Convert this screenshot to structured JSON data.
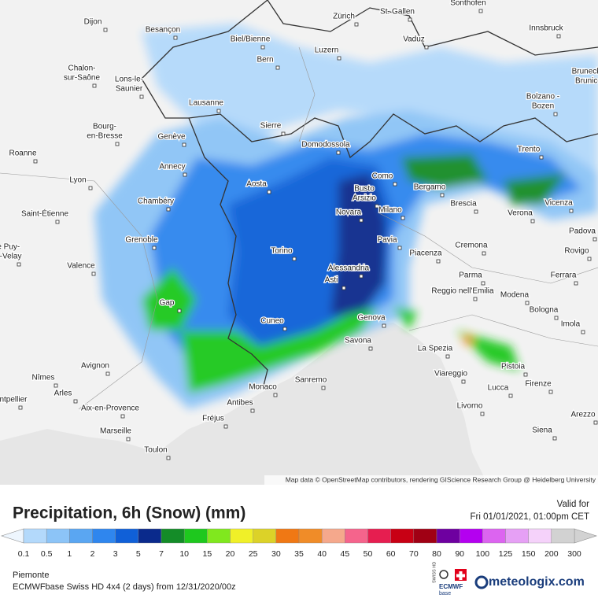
{
  "map": {
    "cities": [
      [
        "Dijon"
      ],
      [
        "Besançon"
      ],
      [
        "Biel/Bienne"
      ],
      [
        "Zürich"
      ],
      [
        "St. Gallen"
      ],
      [
        "Sonthofen"
      ],
      [
        "Innsbruck"
      ],
      [
        "Vaduz"
      ],
      [
        "Bern"
      ],
      [
        "Luzern"
      ],
      [
        "Chalon-",
        "sur-Saône"
      ],
      [
        "Lons-le-",
        "Saunier"
      ],
      [
        "Bruneck -",
        "Brunico"
      ],
      [
        "Lausanne"
      ],
      [
        "Bolzano -",
        "Bozen"
      ],
      [
        "Sierre"
      ],
      [
        "Bourg-",
        "en-Bresse"
      ],
      [
        "Domodossola"
      ],
      [
        "Genève"
      ],
      [
        "Trento"
      ],
      [
        "Roanne"
      ],
      [
        "Annecy"
      ],
      [
        "Como"
      ],
      [
        "Busto",
        "Arsizio"
      ],
      [
        "Bergamo"
      ],
      [
        "Lyon"
      ],
      [
        "Aosta"
      ],
      [
        "Vicenza"
      ],
      [
        "Chambéry"
      ],
      [
        "Novara"
      ],
      [
        "Milano"
      ],
      [
        "Brescia"
      ],
      [
        "Verona"
      ],
      [
        "Saint-Étienne"
      ],
      [
        "Padova"
      ],
      [
        "Grenoble"
      ],
      [
        "Pavia"
      ],
      [
        "Le Puy-",
        "en-Velay"
      ],
      [
        "Cremona"
      ],
      [
        "Rovigo"
      ],
      [
        "Torino"
      ],
      [
        "Piacenza"
      ],
      [
        "Valence"
      ],
      [
        "Alessandria"
      ],
      [
        "Parma"
      ],
      [
        "Ferrara"
      ],
      [
        "Asti"
      ],
      [
        "Reggio nell'Emilia"
      ],
      [
        "Modena"
      ],
      [
        "Gap"
      ],
      [
        "Bologna"
      ],
      [
        "Genova"
      ],
      [
        "Cuneo"
      ],
      [
        "Imola"
      ],
      [
        "Savona"
      ],
      [
        "La Spezia"
      ],
      [
        "Avignon"
      ],
      [
        "Pistoia"
      ],
      [
        "Viareggio"
      ],
      [
        "Nîmes"
      ],
      [
        "Firenze"
      ],
      [
        "Sanremo"
      ],
      [
        "Monaco"
      ],
      [
        "Lucca"
      ],
      [
        "Arles"
      ],
      [
        "Montpellier"
      ],
      [
        "Antibes"
      ],
      [
        "Livorno"
      ],
      [
        "Aix-en-Provence"
      ],
      [
        "Arezzo"
      ],
      [
        "Fréjus"
      ],
      [
        "Siena"
      ],
      [
        "Marseille"
      ],
      [
        "Toulon"
      ]
    ],
    "attribution": "Map data © OpenStreetMap contributors, rendering GIScience Research Group @ Heidelberg University"
  },
  "legend": {
    "title": "Precipitation, 6h (Snow) (mm)",
    "valid_label": "Valid for",
    "valid_time": "Fri 01/01/2021, 01:00pm CET",
    "values": [
      0.1,
      0.5,
      1,
      2,
      3,
      5,
      7,
      10,
      15,
      20,
      25,
      30,
      35,
      40,
      45,
      50,
      60,
      70,
      80,
      90,
      100,
      125,
      150,
      200,
      300
    ],
    "colors": [
      "#b3d9fb",
      "#8cc4f7",
      "#5aa6f2",
      "#2f86ee",
      "#1060d8",
      "#0a2a8c",
      "#148c28",
      "#1ec81e",
      "#80e81e",
      "#f0f028",
      "#dcd228",
      "#f07814",
      "#f08c28",
      "#f5a88c",
      "#f5648c",
      "#e61e50",
      "#c80014",
      "#a00014",
      "#6e00a0",
      "#b400f0",
      "#dc64f0",
      "#e6a0f5",
      "#f5d2fa",
      "#d2d2d2"
    ]
  },
  "footer": {
    "region": "Piemonte",
    "model": "ECMWFbase Swiss HD 4x4 (2 days) from 12/31/2020/00z",
    "brand": "meteologix.com",
    "logo_top": "SWISS HD",
    "logo_mid": "ECMWF",
    "logo_bottom": "base"
  }
}
